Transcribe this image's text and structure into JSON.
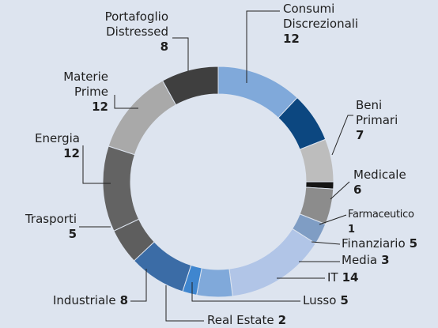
{
  "chart_data": {
    "type": "donut",
    "categories": [
      "Consumi Discrezionali",
      "Beni Primari",
      "Medicale",
      "Farmaceutico",
      "Finanziario",
      "Media",
      "IT",
      "Lusso",
      "Real Estate",
      "Industriale",
      "Trasporti",
      "Energia",
      "Materie Prime",
      "Portafoglio Distressed"
    ],
    "values": [
      12,
      7,
      6,
      1,
      5,
      3,
      14,
      5,
      2,
      8,
      5,
      12,
      12,
      8
    ],
    "colors": [
      "#80a9da",
      "#0c4780",
      "#bdbdbd",
      "#151515",
      "#8c8c8c",
      "#7f9dc4",
      "#b1c5e7",
      "#80a9da",
      "#3f86cf",
      "#3b6ca6",
      "#5e5e5e",
      "#636363",
      "#a9a9a9",
      "#3f3f3f"
    ]
  }
}
